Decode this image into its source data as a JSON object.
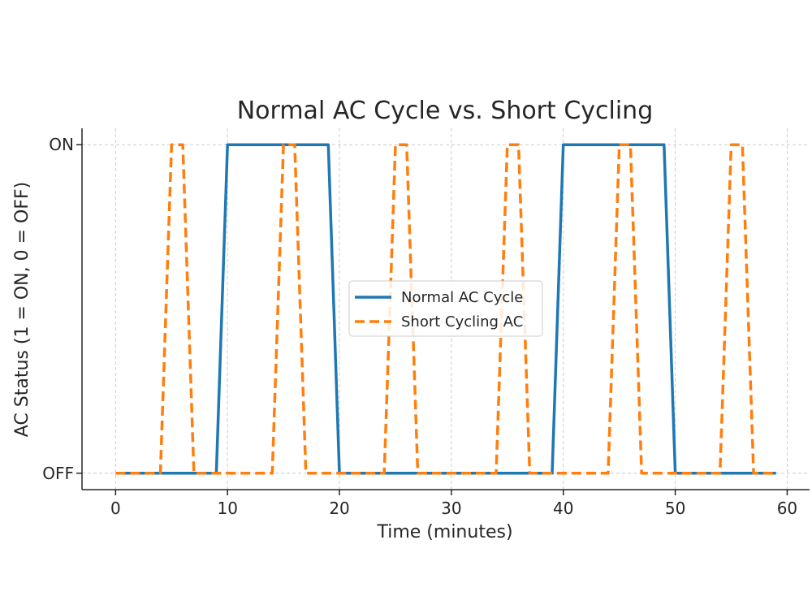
{
  "chart_data": {
    "type": "line",
    "title": "Normal AC Cycle vs. Short Cycling",
    "xlabel": "Time (minutes)",
    "ylabel": "AC Status (1 = ON, 0 = OFF)",
    "xlim": [
      -3,
      62
    ],
    "ylim": [
      -0.05,
      1.05
    ],
    "x_ticks": [
      0,
      10,
      20,
      30,
      40,
      50,
      60
    ],
    "y_ticks": [
      {
        "value": 0,
        "label": "OFF"
      },
      {
        "value": 1,
        "label": "ON"
      }
    ],
    "grid": true,
    "legend_position": "center",
    "series": [
      {
        "name": "Normal AC Cycle",
        "color": "#1f77b4",
        "style": "solid",
        "x": [
          0,
          9,
          10,
          19,
          20,
          39,
          40,
          49,
          50,
          59
        ],
        "y": [
          0,
          0,
          1,
          1,
          0,
          0,
          1,
          1,
          0,
          0
        ]
      },
      {
        "name": "Short Cycling AC",
        "color": "#ff7f0e",
        "style": "dashed",
        "x": [
          0,
          4,
          5,
          6,
          7,
          14,
          15,
          16,
          17,
          24,
          25,
          26,
          27,
          34,
          35,
          36,
          37,
          44,
          45,
          46,
          47,
          54,
          55,
          56,
          57,
          59
        ],
        "y": [
          0,
          0,
          1,
          1,
          0,
          0,
          1,
          1,
          0,
          0,
          1,
          1,
          0,
          0,
          1,
          1,
          0,
          0,
          1,
          1,
          0,
          0,
          1,
          1,
          0,
          0
        ]
      }
    ]
  }
}
